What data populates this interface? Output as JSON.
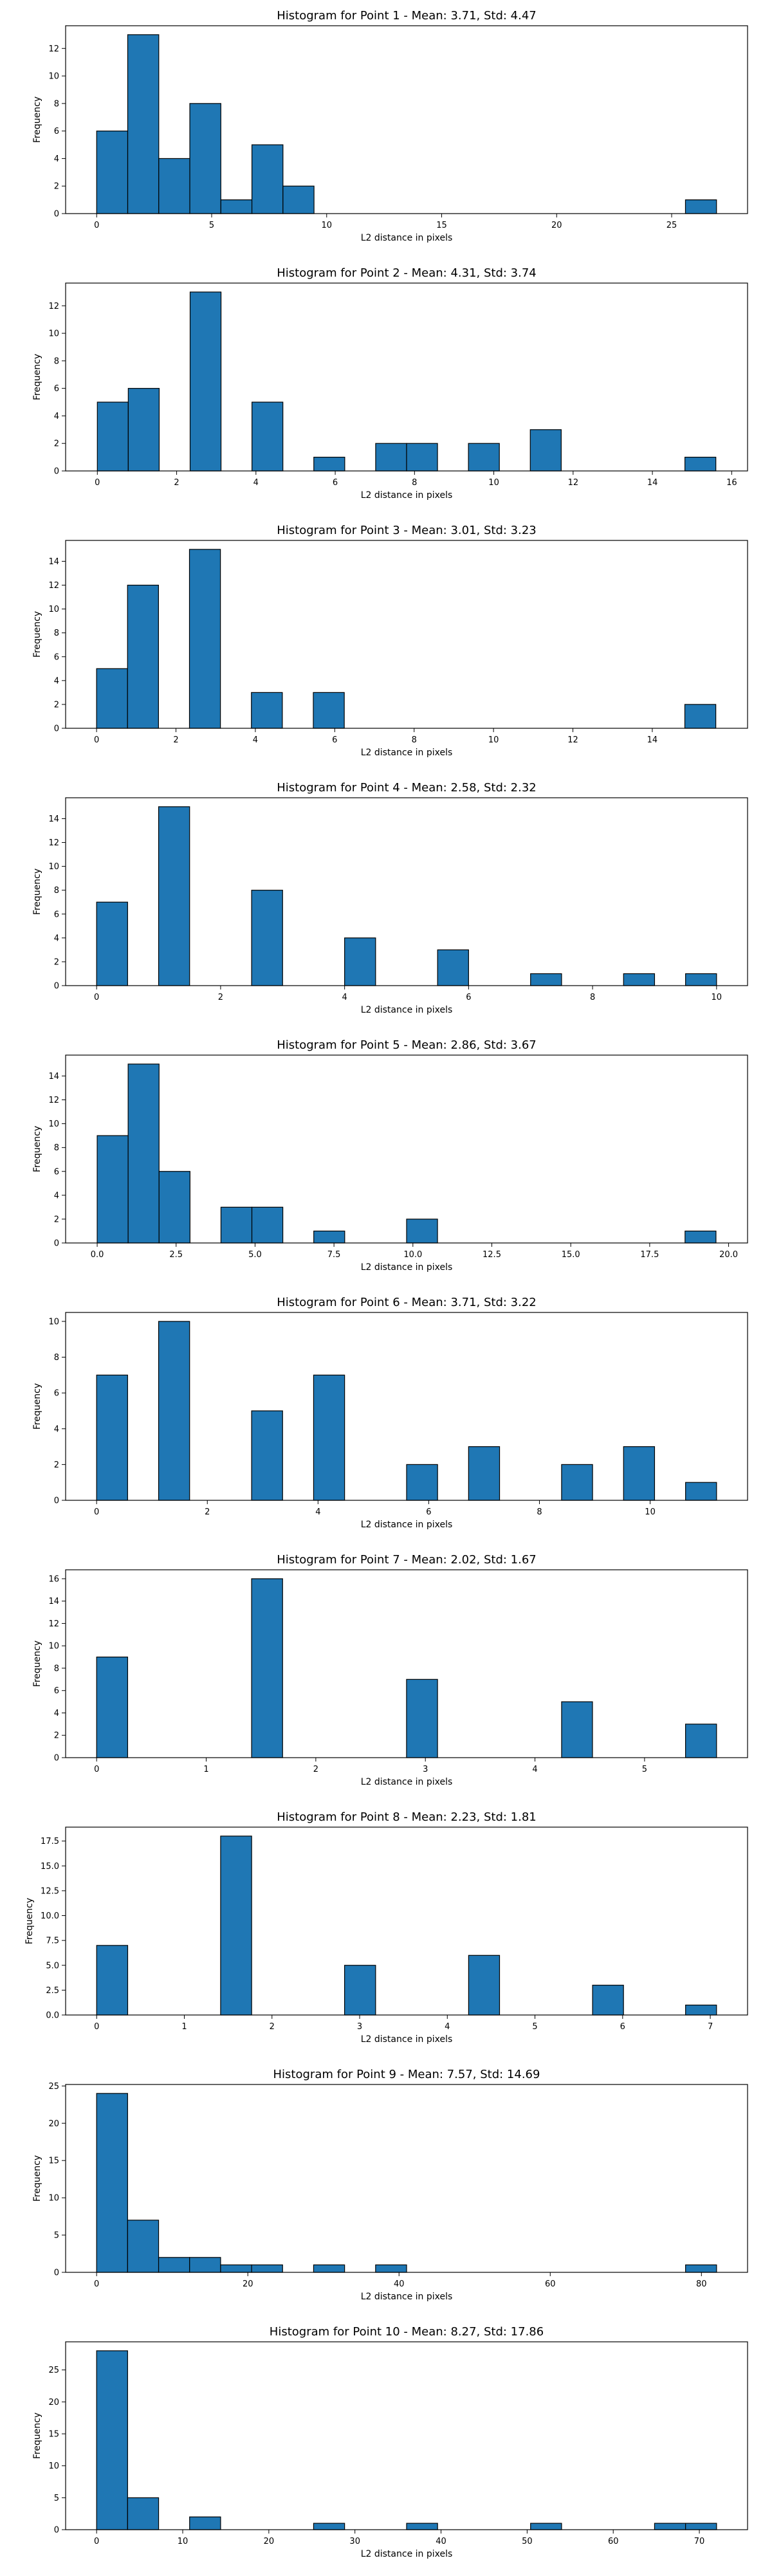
{
  "style": {
    "bar_color": "#1f77b4",
    "edge_color": "#000000",
    "background": "#ffffff"
  },
  "chart_data": [
    {
      "type": "bar",
      "title": "Histogram for Point 1 - Mean: 3.71, Std: 4.47",
      "xlabel": "L2 distance in pixels",
      "ylabel": "Frequency",
      "xlim": [
        -1.35,
        28.3
      ],
      "ylim": [
        0,
        13.65
      ],
      "xticks": [
        0,
        5,
        10,
        15,
        20,
        25
      ],
      "xtick_labels": [
        "0",
        "5",
        "10",
        "15",
        "20",
        "25"
      ],
      "yticks": [
        0,
        2,
        4,
        6,
        8,
        10,
        12
      ],
      "ytick_labels": [
        "0",
        "2",
        "4",
        "6",
        "8",
        "10",
        "12"
      ],
      "bins": [
        {
          "x0": 0,
          "x1": 1.35,
          "value": 6
        },
        {
          "x0": 1.35,
          "x1": 2.7,
          "value": 13
        },
        {
          "x0": 2.7,
          "x1": 4.05,
          "value": 4
        },
        {
          "x0": 4.05,
          "x1": 5.4,
          "value": 8
        },
        {
          "x0": 5.4,
          "x1": 6.75,
          "value": 1
        },
        {
          "x0": 6.75,
          "x1": 8.1,
          "value": 5
        },
        {
          "x0": 8.1,
          "x1": 9.45,
          "value": 2
        },
        {
          "x0": 25.6,
          "x1": 26.95,
          "value": 1
        }
      ]
    },
    {
      "type": "bar",
      "title": "Histogram for Point 2 - Mean: 4.31, Std: 3.74",
      "xlabel": "L2 distance in pixels",
      "ylabel": "Frequency",
      "xlim": [
        -0.8,
        16.4
      ],
      "ylim": [
        0,
        13.65
      ],
      "xticks": [
        0,
        2,
        4,
        6,
        8,
        10,
        12,
        14,
        16
      ],
      "xtick_labels": [
        "0",
        "2",
        "4",
        "6",
        "8",
        "10",
        "12",
        "14",
        "16"
      ],
      "yticks": [
        0,
        2,
        4,
        6,
        8,
        10,
        12
      ],
      "ytick_labels": [
        "0",
        "2",
        "4",
        "6",
        "8",
        "10",
        "12"
      ],
      "bins": [
        {
          "x0": 0,
          "x1": 0.78,
          "value": 5
        },
        {
          "x0": 0.78,
          "x1": 1.56,
          "value": 6
        },
        {
          "x0": 2.34,
          "x1": 3.12,
          "value": 13
        },
        {
          "x0": 3.9,
          "x1": 4.68,
          "value": 5
        },
        {
          "x0": 5.46,
          "x1": 6.24,
          "value": 1
        },
        {
          "x0": 7.02,
          "x1": 7.8,
          "value": 2
        },
        {
          "x0": 7.8,
          "x1": 8.58,
          "value": 2
        },
        {
          "x0": 9.36,
          "x1": 10.14,
          "value": 2
        },
        {
          "x0": 10.92,
          "x1": 11.7,
          "value": 3
        },
        {
          "x0": 14.82,
          "x1": 15.6,
          "value": 1
        }
      ]
    },
    {
      "type": "bar",
      "title": "Histogram for Point 3 - Mean: 3.01, Std: 3.23",
      "xlabel": "L2 distance in pixels",
      "ylabel": "Frequency",
      "xlim": [
        -0.78,
        16.4
      ],
      "ylim": [
        0,
        15.75
      ],
      "xticks": [
        0,
        2,
        4,
        6,
        8,
        10,
        12,
        14
      ],
      "xtick_labels": [
        "0",
        "2",
        "4",
        "6",
        "8",
        "10",
        "12",
        "14"
      ],
      "yticks": [
        0,
        2,
        4,
        6,
        8,
        10,
        12,
        14
      ],
      "ytick_labels": [
        "0",
        "2",
        "4",
        "6",
        "8",
        "10",
        "12",
        "14"
      ],
      "bins": [
        {
          "x0": 0,
          "x1": 0.78,
          "value": 5
        },
        {
          "x0": 0.78,
          "x1": 1.56,
          "value": 12
        },
        {
          "x0": 2.34,
          "x1": 3.12,
          "value": 15
        },
        {
          "x0": 3.9,
          "x1": 4.68,
          "value": 3
        },
        {
          "x0": 5.46,
          "x1": 6.24,
          "value": 3
        },
        {
          "x0": 14.82,
          "x1": 15.6,
          "value": 2
        }
      ]
    },
    {
      "type": "bar",
      "title": "Histogram for Point 4 - Mean: 2.58, Std: 2.32",
      "xlabel": "L2 distance in pixels",
      "ylabel": "Frequency",
      "xlim": [
        -0.5,
        10.5
      ],
      "ylim": [
        0,
        15.75
      ],
      "xticks": [
        0,
        2,
        4,
        6,
        8,
        10
      ],
      "xtick_labels": [
        "0",
        "2",
        "4",
        "6",
        "8",
        "10"
      ],
      "yticks": [
        0,
        2,
        4,
        6,
        8,
        10,
        12,
        14
      ],
      "ytick_labels": [
        "0",
        "2",
        "4",
        "6",
        "8",
        "10",
        "12",
        "14"
      ],
      "bins": [
        {
          "x0": 0,
          "x1": 0.5,
          "value": 7
        },
        {
          "x0": 1,
          "x1": 1.5,
          "value": 15
        },
        {
          "x0": 2.5,
          "x1": 3,
          "value": 8
        },
        {
          "x0": 4,
          "x1": 4.5,
          "value": 4
        },
        {
          "x0": 5.5,
          "x1": 6,
          "value": 3
        },
        {
          "x0": 7,
          "x1": 7.5,
          "value": 1
        },
        {
          "x0": 8.5,
          "x1": 9,
          "value": 1
        },
        {
          "x0": 9.5,
          "x1": 10,
          "value": 1
        }
      ]
    },
    {
      "type": "bar",
      "title": "Histogram for Point 5 - Mean: 2.86, Std: 3.67",
      "xlabel": "L2 distance in pixels",
      "ylabel": "Frequency",
      "xlim": [
        -1.0,
        20.6
      ],
      "ylim": [
        0,
        15.75
      ],
      "xticks": [
        0,
        2.5,
        5,
        7.5,
        10,
        12.5,
        15,
        17.5,
        20
      ],
      "xtick_labels": [
        "0.0",
        "2.5",
        "5.0",
        "7.5",
        "10.0",
        "12.5",
        "15.0",
        "17.5",
        "20.0"
      ],
      "yticks": [
        0,
        2,
        4,
        6,
        8,
        10,
        12,
        14
      ],
      "ytick_labels": [
        "0",
        "2",
        "4",
        "6",
        "8",
        "10",
        "12",
        "14"
      ],
      "bins": [
        {
          "x0": 0,
          "x1": 0.98,
          "value": 9
        },
        {
          "x0": 0.98,
          "x1": 1.96,
          "value": 15
        },
        {
          "x0": 1.96,
          "x1": 2.94,
          "value": 6
        },
        {
          "x0": 3.92,
          "x1": 4.9,
          "value": 3
        },
        {
          "x0": 4.9,
          "x1": 5.88,
          "value": 3
        },
        {
          "x0": 6.86,
          "x1": 7.84,
          "value": 1
        },
        {
          "x0": 9.8,
          "x1": 10.78,
          "value": 2
        },
        {
          "x0": 18.62,
          "x1": 19.6,
          "value": 1
        }
      ]
    },
    {
      "type": "bar",
      "title": "Histogram for Point 6 - Mean: 3.71, Std: 3.22",
      "xlabel": "L2 distance in pixels",
      "ylabel": "Frequency",
      "xlim": [
        -0.56,
        11.76
      ],
      "ylim": [
        0,
        10.5
      ],
      "xticks": [
        0,
        2,
        4,
        6,
        8,
        10
      ],
      "xtick_labels": [
        "0",
        "2",
        "4",
        "6",
        "8",
        "10"
      ],
      "yticks": [
        0,
        2,
        4,
        6,
        8,
        10
      ],
      "ytick_labels": [
        "0",
        "2",
        "4",
        "6",
        "8",
        "10"
      ],
      "bins": [
        {
          "x0": 0,
          "x1": 0.56,
          "value": 7
        },
        {
          "x0": 1.12,
          "x1": 1.68,
          "value": 10
        },
        {
          "x0": 2.8,
          "x1": 3.36,
          "value": 5
        },
        {
          "x0": 3.92,
          "x1": 4.48,
          "value": 7
        },
        {
          "x0": 5.6,
          "x1": 6.16,
          "value": 2
        },
        {
          "x0": 6.72,
          "x1": 7.28,
          "value": 3
        },
        {
          "x0": 8.4,
          "x1": 8.96,
          "value": 2
        },
        {
          "x0": 9.52,
          "x1": 10.08,
          "value": 3
        },
        {
          "x0": 10.64,
          "x1": 11.2,
          "value": 1
        }
      ]
    },
    {
      "type": "bar",
      "title": "Histogram for Point 7 - Mean: 2.02, Std: 1.67",
      "xlabel": "L2 distance in pixels",
      "ylabel": "Frequency",
      "xlim": [
        -0.283,
        5.94
      ],
      "ylim": [
        0,
        16.8
      ],
      "xticks": [
        0,
        1,
        2,
        3,
        4,
        5
      ],
      "xtick_labels": [
        "0",
        "1",
        "2",
        "3",
        "4",
        "5"
      ],
      "yticks": [
        0,
        2,
        4,
        6,
        8,
        10,
        12,
        14,
        16
      ],
      "ytick_labels": [
        "0",
        "2",
        "4",
        "6",
        "8",
        "10",
        "12",
        "14",
        "16"
      ],
      "bins": [
        {
          "x0": 0,
          "x1": 0.283,
          "value": 9
        },
        {
          "x0": 1.414,
          "x1": 1.697,
          "value": 16
        },
        {
          "x0": 2.828,
          "x1": 3.111,
          "value": 7
        },
        {
          "x0": 4.243,
          "x1": 4.525,
          "value": 5
        },
        {
          "x0": 5.374,
          "x1": 5.657,
          "value": 3
        }
      ]
    },
    {
      "type": "bar",
      "title": "Histogram for Point 8 - Mean: 2.23, Std: 1.81",
      "xlabel": "L2 distance in pixels",
      "ylabel": "Frequency",
      "xlim": [
        -0.354,
        7.425
      ],
      "ylim": [
        0,
        18.9
      ],
      "xticks": [
        0,
        1,
        2,
        3,
        4,
        5,
        6,
        7
      ],
      "xtick_labels": [
        "0",
        "1",
        "2",
        "3",
        "4",
        "5",
        "6",
        "7"
      ],
      "yticks": [
        0,
        2.5,
        5,
        7.5,
        10,
        12.5,
        15,
        17.5
      ],
      "ytick_labels": [
        "0.0",
        "2.5",
        "5.0",
        "7.5",
        "10.0",
        "12.5",
        "15.0",
        "17.5"
      ],
      "bins": [
        {
          "x0": 0,
          "x1": 0.354,
          "value": 7
        },
        {
          "x0": 1.414,
          "x1": 1.768,
          "value": 18
        },
        {
          "x0": 2.828,
          "x1": 3.182,
          "value": 5
        },
        {
          "x0": 4.243,
          "x1": 4.596,
          "value": 6
        },
        {
          "x0": 5.657,
          "x1": 6.01,
          "value": 3
        },
        {
          "x0": 6.718,
          "x1": 7.071,
          "value": 1
        }
      ]
    },
    {
      "type": "bar",
      "title": "Histogram for Point 9 - Mean: 7.57, Std: 14.69",
      "xlabel": "L2 distance in pixels",
      "ylabel": "Frequency",
      "xlim": [
        -4.1,
        86.1
      ],
      "ylim": [
        0,
        25.2
      ],
      "xticks": [
        0,
        20,
        40,
        60,
        80
      ],
      "xtick_labels": [
        "0",
        "20",
        "40",
        "60",
        "80"
      ],
      "yticks": [
        0,
        5,
        10,
        15,
        20,
        25
      ],
      "ytick_labels": [
        "0",
        "5",
        "10",
        "15",
        "20",
        "25"
      ],
      "bins": [
        {
          "x0": 0,
          "x1": 4.1,
          "value": 24
        },
        {
          "x0": 4.1,
          "x1": 8.2,
          "value": 7
        },
        {
          "x0": 8.2,
          "x1": 12.3,
          "value": 2
        },
        {
          "x0": 12.3,
          "x1": 16.4,
          "value": 2
        },
        {
          "x0": 16.4,
          "x1": 20.5,
          "value": 1
        },
        {
          "x0": 20.5,
          "x1": 24.6,
          "value": 1
        },
        {
          "x0": 28.7,
          "x1": 32.8,
          "value": 1
        },
        {
          "x0": 36.9,
          "x1": 41.0,
          "value": 1
        },
        {
          "x0": 77.9,
          "x1": 82.0,
          "value": 1
        }
      ]
    },
    {
      "type": "bar",
      "title": "Histogram for Point 10 - Mean: 8.27, Std: 17.86",
      "xlabel": "L2 distance in pixels",
      "ylabel": "Frequency",
      "xlim": [
        -3.6,
        75.6
      ],
      "ylim": [
        0,
        29.4
      ],
      "xticks": [
        0,
        10,
        20,
        30,
        40,
        50,
        60,
        70
      ],
      "xtick_labels": [
        "0",
        "10",
        "20",
        "30",
        "40",
        "50",
        "60",
        "70"
      ],
      "yticks": [
        0,
        5,
        10,
        15,
        20,
        25
      ],
      "ytick_labels": [
        "0",
        "5",
        "10",
        "15",
        "20",
        "25"
      ],
      "bins": [
        {
          "x0": 0,
          "x1": 3.6,
          "value": 28
        },
        {
          "x0": 3.6,
          "x1": 7.2,
          "value": 5
        },
        {
          "x0": 10.8,
          "x1": 14.4,
          "value": 2
        },
        {
          "x0": 25.2,
          "x1": 28.8,
          "value": 1
        },
        {
          "x0": 36.0,
          "x1": 39.6,
          "value": 1
        },
        {
          "x0": 50.4,
          "x1": 54.0,
          "value": 1
        },
        {
          "x0": 64.8,
          "x1": 68.4,
          "value": 1
        },
        {
          "x0": 68.4,
          "x1": 72.0,
          "value": 1
        }
      ]
    }
  ]
}
